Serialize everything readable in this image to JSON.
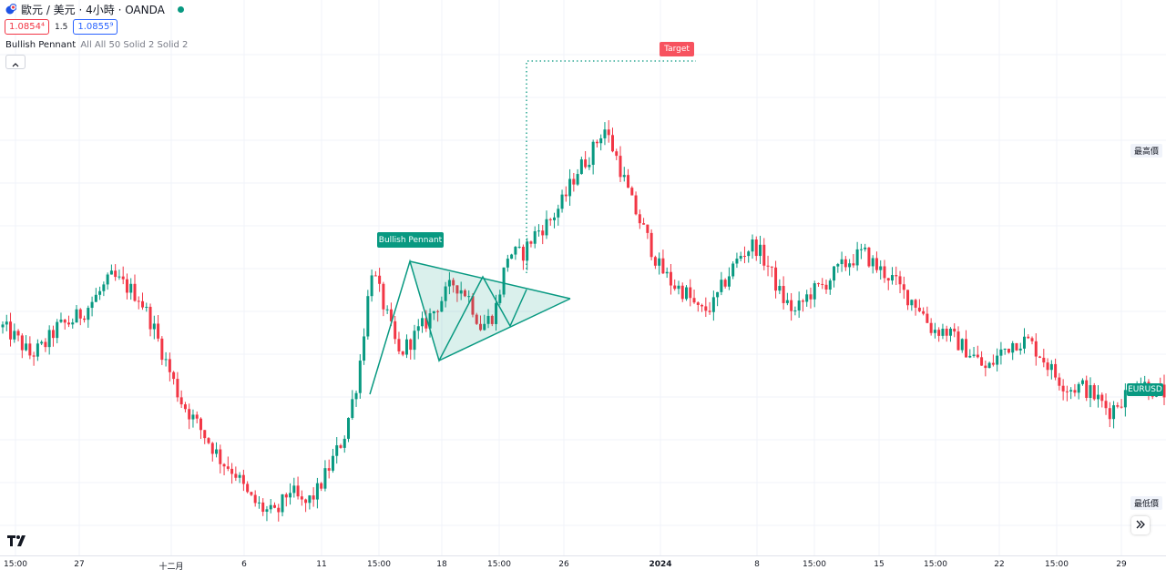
{
  "header": {
    "symbol_title": "歐元 / 美元 · 4小時 · OANDA"
  },
  "prices": {
    "sell": "1.0854⁴",
    "spread": "1.5",
    "buy": "1.0855⁹"
  },
  "indicator": {
    "name": "Bullish Pennant",
    "args": "All All 50 Solid 2 Solid 2"
  },
  "pattern": {
    "label": "Bullish Pennant",
    "target_label": "Target"
  },
  "price_axis": {
    "high_label": "最高價",
    "low_label": "最低價",
    "symbol_tag": "EURUSD"
  },
  "time_axis": [
    {
      "label": "15:00",
      "bold": false
    },
    {
      "label": "27",
      "bold": false
    },
    {
      "label": "十二月",
      "bold": false
    },
    {
      "label": "6",
      "bold": false
    },
    {
      "label": "11",
      "bold": false
    },
    {
      "label": "15:00",
      "bold": false
    },
    {
      "label": "18",
      "bold": false
    },
    {
      "label": "15:00",
      "bold": false
    },
    {
      "label": "26",
      "bold": false
    },
    {
      "label": "2024",
      "bold": true
    },
    {
      "label": "8",
      "bold": false
    },
    {
      "label": "15:00",
      "bold": false
    },
    {
      "label": "15",
      "bold": false
    },
    {
      "label": "15:00",
      "bold": false
    },
    {
      "label": "22",
      "bold": false
    },
    {
      "label": "15:00",
      "bold": false
    },
    {
      "label": "29",
      "bold": false
    }
  ],
  "colors": {
    "up": "#089981",
    "down": "#f23645",
    "pattern": "#089981",
    "target": "#f7525f"
  },
  "icons": {
    "collapse": "chevron-up-icon",
    "scroll": "double-chevron-right-icon",
    "logo": "tradingview-logo"
  },
  "chart_data": {
    "type": "candlestick",
    "close_path": [
      1.0945,
      1.0935,
      1.092,
      1.0928,
      1.0945,
      1.095,
      1.096,
      1.0975,
      1.099,
      1.0982,
      1.0972,
      1.0946,
      1.0912,
      1.088,
      1.0862,
      1.0844,
      1.0825,
      1.0815,
      1.0792,
      1.0782,
      1.0776,
      1.08,
      1.0784,
      1.0797,
      1.0822,
      1.0848,
      1.09,
      1.0998,
      1.096,
      1.092,
      1.0935,
      1.095,
      1.0968,
      1.0985,
      1.0975,
      1.0945,
      1.0958,
      1.1012,
      1.101,
      1.103,
      1.104,
      1.1058,
      1.1085,
      1.11,
      1.1125,
      1.1095,
      1.1058,
      1.103,
      1.1,
      1.0984,
      1.0976,
      1.0958,
      1.0965,
      1.099,
      1.101,
      1.102,
      1.1,
      1.0972,
      1.0958,
      1.0975,
      1.0982,
      1.0995,
      1.1005,
      1.1012,
      1.0998,
      1.099,
      1.0975,
      1.0965,
      1.0943,
      1.0942,
      1.093,
      1.092,
      1.0906,
      1.0922,
      1.0932,
      1.0933,
      1.092,
      1.0902,
      1.089,
      1.0892,
      1.0882,
      1.087,
      1.0882,
      1.0898,
      1.089,
      1.0886
    ],
    "pennant_label": "Bullish Pennant",
    "target_label": "Target",
    "last_symbol": "EURUSD"
  }
}
